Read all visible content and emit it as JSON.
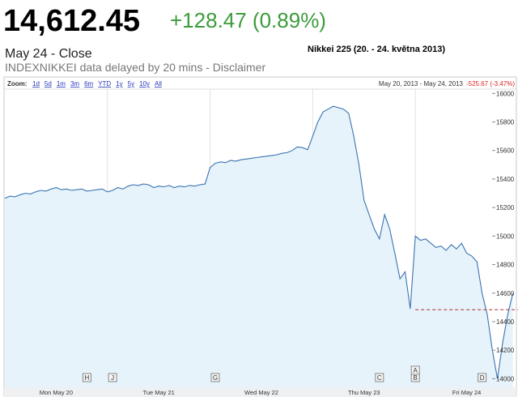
{
  "header": {
    "price": "14,612.45",
    "change": "+128.47 (0.89%)",
    "close_label": "May 24 - Close",
    "source": "INDEXNIKKEI data delayed by 20 mins - Disclaimer",
    "caption": "Nikkei 225 (20. - 24. května 2013)"
  },
  "toolbar": {
    "zoom_label": "Zoom:",
    "ranges": [
      "1d",
      "5d",
      "1m",
      "3m",
      "6m",
      "YTD",
      "1y",
      "5y",
      "10y",
      "All"
    ],
    "date_range": "May 20, 2013 - May 24, 2013",
    "range_change": "-525.67 (-3.47%)"
  },
  "chart_data": {
    "type": "line",
    "color": "#3b73b0",
    "fill": "#e6f3fb",
    "values": [
      15265,
      15280,
      15275,
      15290,
      15300,
      15295,
      15310,
      15320,
      15315,
      15330,
      15340,
      15325,
      15330,
      15320,
      15325,
      15330,
      15315,
      15320,
      15325,
      15330,
      15310,
      15320,
      15340,
      15330,
      15350,
      15360,
      15355,
      15365,
      15360,
      15340,
      15350,
      15345,
      15355,
      15340,
      15350,
      15345,
      15355,
      15350,
      15360,
      15365,
      15480,
      15510,
      15520,
      15515,
      15530,
      15525,
      15535,
      15540,
      15545,
      15550,
      15555,
      15560,
      15565,
      15570,
      15580,
      15585,
      15600,
      15625,
      15620,
      15605,
      15700,
      15800,
      15870,
      15890,
      15910,
      15900,
      15890,
      15860,
      15700,
      15500,
      15250,
      15150,
      15050,
      14980,
      15150,
      15050,
      14880,
      14700,
      14750,
      14490,
      15000,
      14970,
      14980,
      14950,
      14920,
      14930,
      14900,
      14940,
      14910,
      14950,
      14880,
      14860,
      14820,
      14600,
      14450,
      14200,
      14000,
      14250,
      14450,
      14600
    ],
    "day_labels": [
      "Mon May 20",
      "Tue May 21",
      "Wed May 22",
      "Thu May 23",
      "Fri May 24"
    ],
    "previous_close": 14483.98,
    "flags": [
      {
        "label": "H",
        "x": 16
      },
      {
        "label": "J",
        "x": 21
      },
      {
        "label": "G",
        "x": 41
      },
      {
        "label": "C",
        "x": 73
      },
      {
        "label": "B",
        "x": 80
      },
      {
        "label": "A",
        "x": 80
      },
      {
        "label": "D",
        "x": 93
      }
    ],
    "ylim": [
      13940,
      16030
    ],
    "yticks": [
      14000,
      14200,
      14400,
      14600,
      14800,
      15000,
      15200,
      15400,
      15600,
      15800,
      16000
    ]
  }
}
